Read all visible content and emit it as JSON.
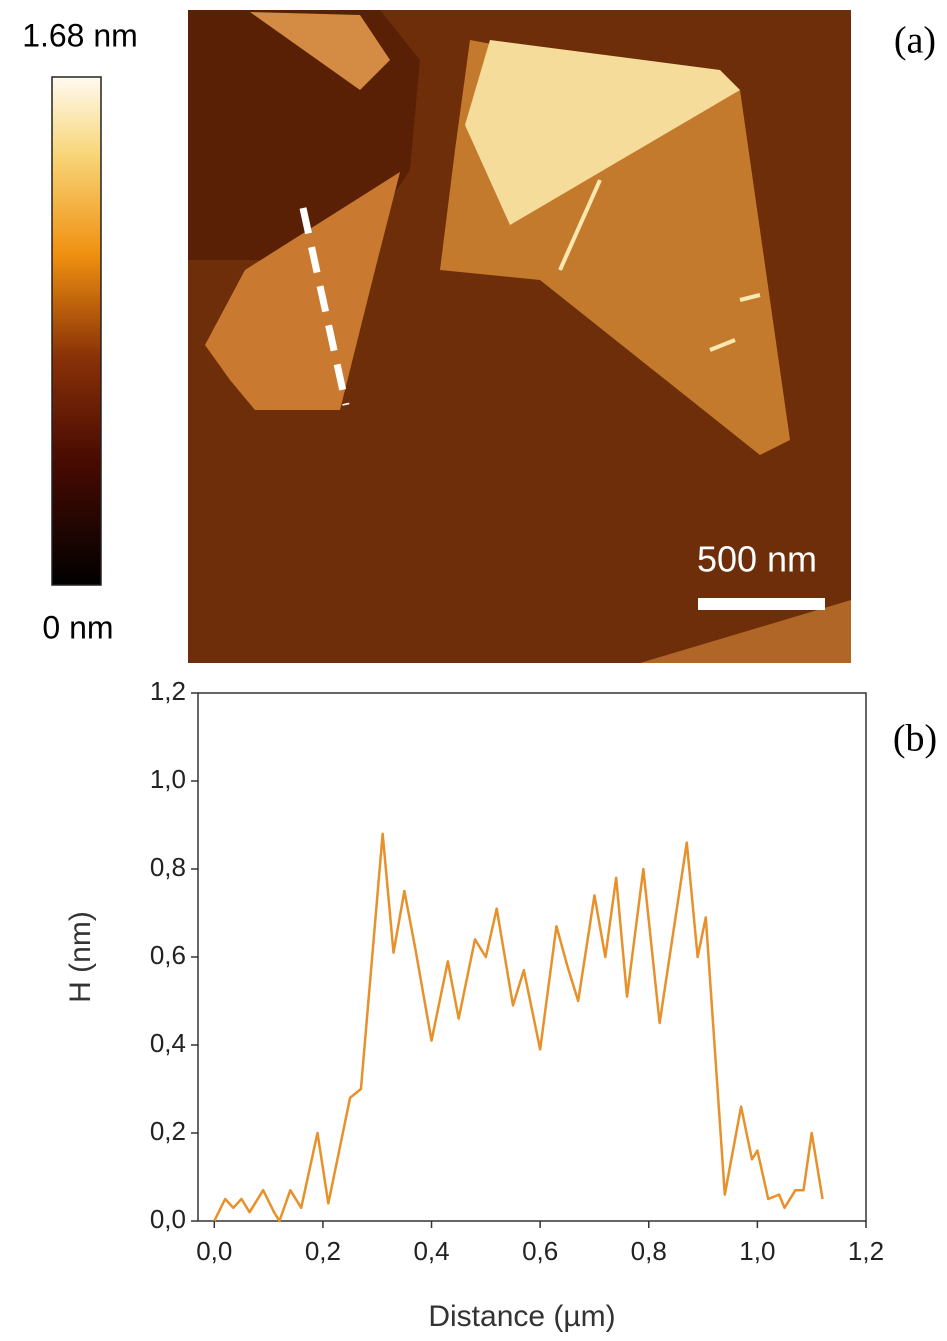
{
  "panel_a": {
    "label": "(a)",
    "colorbar_max": "1.68 nm",
    "colorbar_min": "0 nm",
    "scale_bar": "500 nm"
  },
  "chart_data": {
    "type": "line",
    "panel_label": "(b)",
    "x_label": "Distance (µm)",
    "y_label": "H (nm)",
    "x": [
      0.0,
      0.02,
      0.035,
      0.05,
      0.065,
      0.09,
      0.11,
      0.12,
      0.14,
      0.16,
      0.19,
      0.21,
      0.25,
      0.27,
      0.31,
      0.33,
      0.35,
      0.37,
      0.4,
      0.43,
      0.45,
      0.48,
      0.5,
      0.52,
      0.55,
      0.57,
      0.6,
      0.63,
      0.65,
      0.67,
      0.7,
      0.72,
      0.74,
      0.76,
      0.79,
      0.82,
      0.87,
      0.89,
      0.905,
      0.94,
      0.97,
      0.99,
      1.0,
      1.02,
      1.04,
      1.05,
      1.07,
      1.085,
      1.1,
      1.12
    ],
    "values": [
      0.0,
      0.05,
      0.03,
      0.05,
      0.02,
      0.07,
      0.02,
      0.0,
      0.07,
      0.03,
      0.2,
      0.04,
      0.28,
      0.3,
      0.88,
      0.61,
      0.75,
      0.62,
      0.41,
      0.59,
      0.46,
      0.64,
      0.6,
      0.71,
      0.49,
      0.57,
      0.39,
      0.67,
      0.58,
      0.5,
      0.74,
      0.6,
      0.78,
      0.51,
      0.8,
      0.45,
      0.86,
      0.6,
      0.69,
      0.06,
      0.26,
      0.14,
      0.16,
      0.05,
      0.06,
      0.03,
      0.07,
      0.07,
      0.2,
      0.05
    ],
    "color": "#e8902a",
    "xlim": [
      -0.03,
      1.2
    ],
    "ylim": [
      0,
      1.2
    ],
    "xticks": [
      {
        "value": 0,
        "label": "0,0"
      },
      {
        "value": 0.2,
        "label": "0,2"
      },
      {
        "value": 0.4,
        "label": "0,4"
      },
      {
        "value": 0.6,
        "label": "0,6"
      },
      {
        "value": 0.8,
        "label": "0,8"
      },
      {
        "value": 1.0,
        "label": "1,0"
      },
      {
        "value": 1.2,
        "label": "1,2"
      }
    ],
    "yticks": [
      {
        "value": 0,
        "label": "0,0"
      },
      {
        "value": 0.2,
        "label": "0,2"
      },
      {
        "value": 0.4,
        "label": "0,4"
      },
      {
        "value": 0.6,
        "label": "0,6"
      },
      {
        "value": 0.8,
        "label": "0,8"
      },
      {
        "value": 1.0,
        "label": "1,0"
      },
      {
        "value": 1.2,
        "label": "1,2"
      }
    ]
  }
}
